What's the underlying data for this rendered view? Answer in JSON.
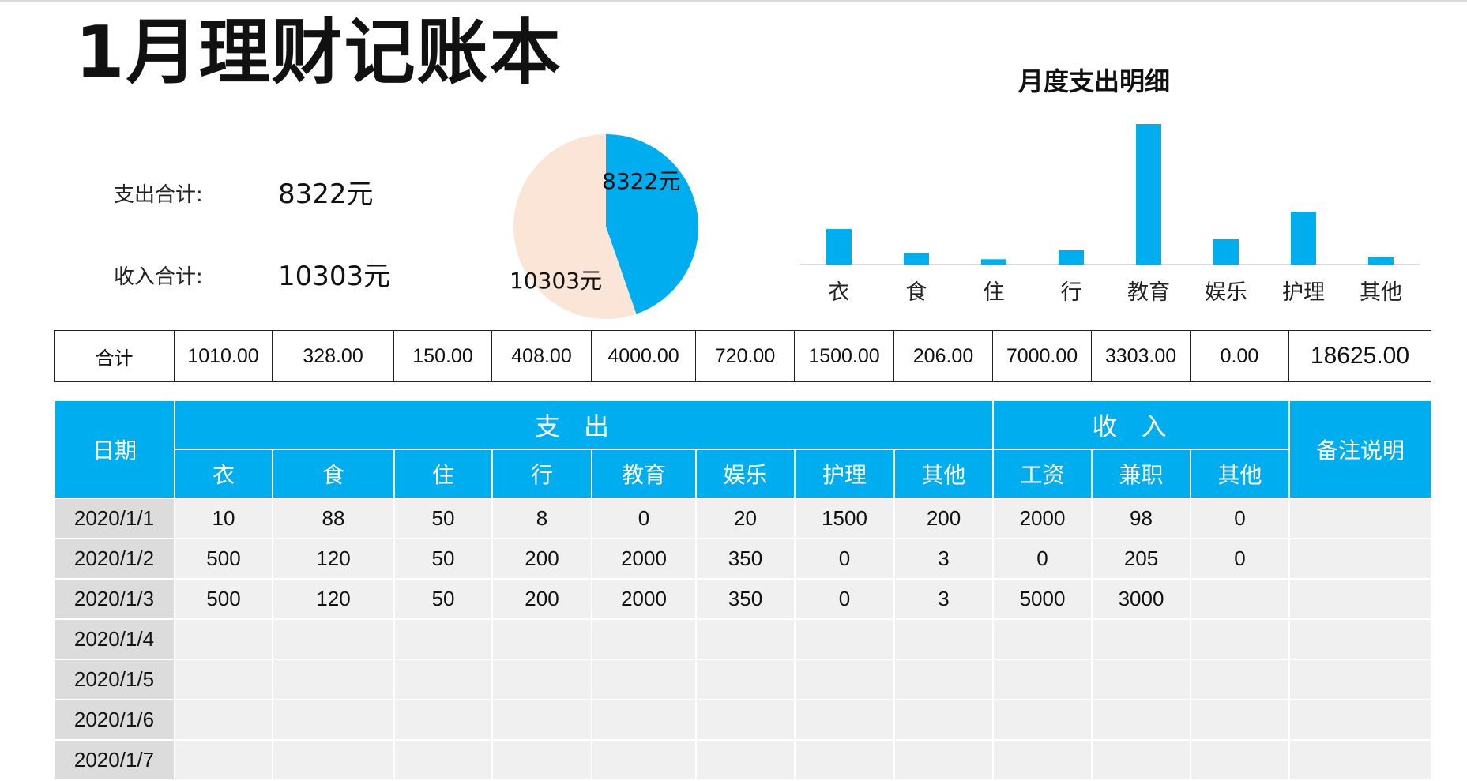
{
  "title": "1月理财记账本",
  "summary": {
    "expense_label": "支出合计:",
    "expense_value": "8322元",
    "income_label": "收入合计:",
    "income_value": "10303元"
  },
  "colors": {
    "accent": "#00aeef",
    "pie_income": "#fbe5d6",
    "row_bg": "#f0f0f0",
    "date_bg": "#dcdcdc"
  },
  "pie": {
    "slices": [
      {
        "label": "8322元",
        "value": 8322,
        "color": "#00aeef"
      },
      {
        "label": "10303元",
        "value": 10303,
        "color": "#fbe5d6"
      }
    ]
  },
  "chart_data": {
    "type": "bar",
    "title": "月度支出明细",
    "categories": [
      "衣",
      "食",
      "住",
      "行",
      "教育",
      "娱乐",
      "护理",
      "其他"
    ],
    "values": [
      1010,
      328,
      150,
      408,
      4000,
      720,
      1500,
      206
    ],
    "ylim": [
      0,
      4000
    ],
    "grid": false,
    "color": "#00aeef"
  },
  "totals": {
    "label": "合计",
    "values": [
      "1010.00",
      "328.00",
      "150.00",
      "408.00",
      "4000.00",
      "720.00",
      "1500.00",
      "206.00",
      "7000.00",
      "3303.00",
      "0.00"
    ],
    "grand_total": "18625.00"
  },
  "table": {
    "date_header": "日期",
    "expense_group": "支出",
    "income_group": "收入",
    "note_header": "备注说明",
    "expense_columns": [
      "衣",
      "食",
      "住",
      "行",
      "教育",
      "娱乐",
      "护理",
      "其他"
    ],
    "income_columns": [
      "工资",
      "兼职",
      "其他"
    ],
    "rows": [
      {
        "date": "2020/1/1",
        "cells": [
          "10",
          "88",
          "50",
          "8",
          "0",
          "20",
          "1500",
          "200",
          "2000",
          "98",
          "0"
        ],
        "note": ""
      },
      {
        "date": "2020/1/2",
        "cells": [
          "500",
          "120",
          "50",
          "200",
          "2000",
          "350",
          "0",
          "3",
          "0",
          "205",
          "0"
        ],
        "note": ""
      },
      {
        "date": "2020/1/3",
        "cells": [
          "500",
          "120",
          "50",
          "200",
          "2000",
          "350",
          "0",
          "3",
          "5000",
          "3000",
          ""
        ],
        "note": ""
      },
      {
        "date": "2020/1/4",
        "cells": [
          "",
          "",
          "",
          "",
          "",
          "",
          "",
          "",
          "",
          "",
          ""
        ],
        "note": ""
      },
      {
        "date": "2020/1/5",
        "cells": [
          "",
          "",
          "",
          "",
          "",
          "",
          "",
          "",
          "",
          "",
          ""
        ],
        "note": ""
      },
      {
        "date": "2020/1/6",
        "cells": [
          "",
          "",
          "",
          "",
          "",
          "",
          "",
          "",
          "",
          "",
          ""
        ],
        "note": ""
      },
      {
        "date": "2020/1/7",
        "cells": [
          "",
          "",
          "",
          "",
          "",
          "",
          "",
          "",
          "",
          "",
          ""
        ],
        "note": ""
      }
    ]
  }
}
